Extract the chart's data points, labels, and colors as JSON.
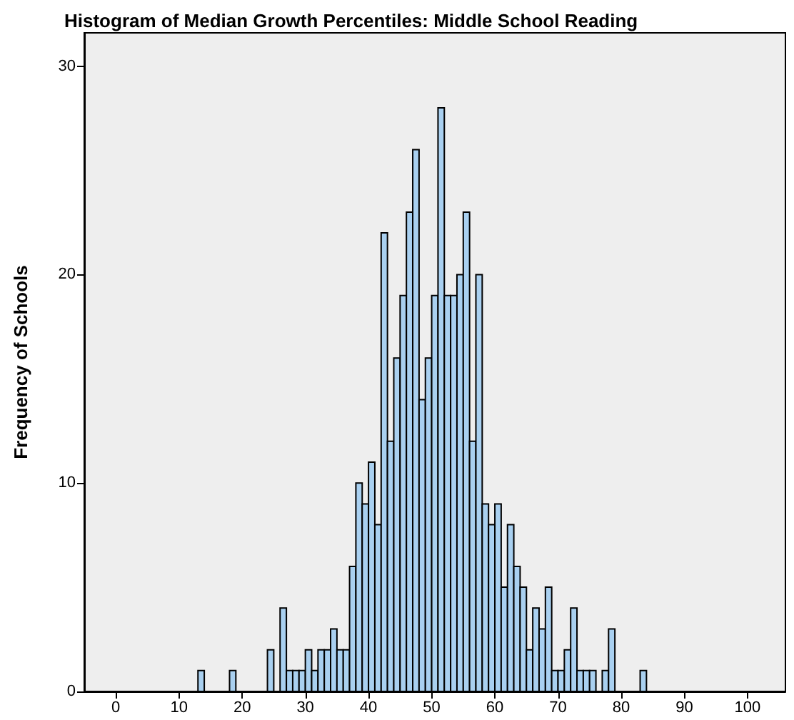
{
  "chart_data": {
    "type": "histogram",
    "title": "Histogram of Median Growth Percentiles: Middle School Reading",
    "ylabel": "Frequency of Schools",
    "bins": [
      13,
      14,
      15,
      16,
      17,
      18,
      19,
      20,
      21,
      22,
      23,
      24,
      25,
      26,
      27,
      28,
      29,
      30,
      31,
      32,
      33,
      34,
      35,
      36,
      37,
      38,
      39,
      40,
      41,
      42,
      43,
      44,
      45,
      46,
      47,
      48,
      49,
      50,
      51,
      52,
      53,
      54,
      55,
      56,
      57,
      58,
      59,
      60,
      61,
      62,
      63,
      64,
      65,
      66,
      67,
      68,
      69,
      70,
      71,
      72,
      73,
      74,
      75,
      76,
      77,
      78,
      79,
      80,
      81,
      82,
      83,
      84
    ],
    "values": [
      1,
      0,
      0,
      0,
      0,
      1,
      0,
      0,
      0,
      0,
      0,
      2,
      0,
      4,
      1,
      1,
      1,
      2,
      1,
      2,
      2,
      3,
      2,
      2,
      6,
      10,
      9,
      11,
      8,
      22,
      12,
      16,
      19,
      23,
      26,
      14,
      16,
      19,
      28,
      19,
      19,
      20,
      23,
      12,
      20,
      9,
      8,
      9,
      5,
      8,
      6,
      5,
      2,
      4,
      3,
      5,
      1,
      1,
      2,
      4,
      1,
      1,
      1,
      0,
      1,
      3,
      0,
      0,
      0,
      0,
      1
    ],
    "color": "#a9d0f0",
    "xlim": [
      -5,
      106
    ],
    "xticks": [
      0,
      10,
      20,
      30,
      40,
      50,
      60,
      70,
      80,
      90,
      100
    ],
    "ylim": [
      0,
      31.6
    ],
    "yticks": [
      0,
      10,
      20,
      30
    ],
    "grid": false
  }
}
